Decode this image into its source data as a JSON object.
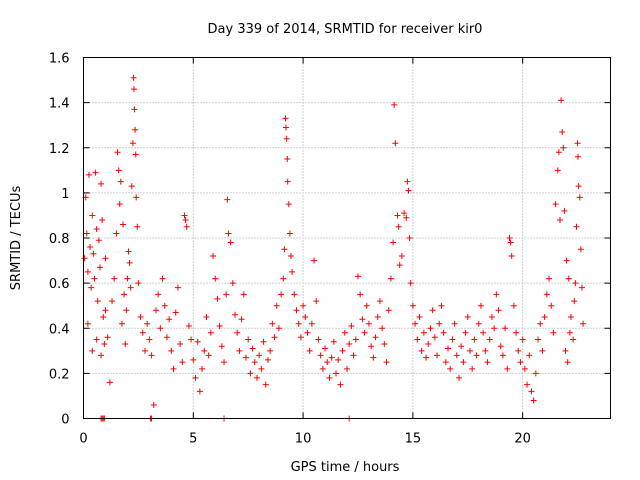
{
  "chart_data": {
    "type": "scatter",
    "title": "Day 339 of 2014, SRMTID for receiver kir0",
    "xlabel": "GPS time / hours",
    "ylabel": "SRMTID / TECUs",
    "xlim": [
      0,
      24
    ],
    "ylim": [
      0,
      1.6
    ],
    "xticks": [
      0,
      5,
      10,
      15,
      20
    ],
    "xtick_labels": [
      "0",
      "5",
      "10",
      "15",
      "20"
    ],
    "yticks": [
      0,
      0.2,
      0.4,
      0.6,
      0.8,
      1.0,
      1.2,
      1.4,
      1.6
    ],
    "ytick_labels": [
      "0",
      "0.2",
      "0.4",
      "0.6",
      "0.8",
      "1",
      "1.2",
      "1.4",
      "1.6"
    ],
    "grid": true,
    "marker": "plus",
    "color": "#ff0000",
    "series": [
      {
        "name": "SRMTID",
        "points": [
          [
            0.05,
            0.71
          ],
          [
            0.1,
            0.98
          ],
          [
            0.15,
            0.82
          ],
          [
            0.2,
            0.65
          ],
          [
            0.25,
            1.08
          ],
          [
            0.3,
            0.76
          ],
          [
            0.35,
            0.58
          ],
          [
            0.4,
            0.9
          ],
          [
            0.45,
            0.73
          ],
          [
            0.5,
            0.62
          ],
          [
            0.55,
            1.09
          ],
          [
            0.6,
            0.84
          ],
          [
            0.65,
            0.52
          ],
          [
            0.7,
            0.79
          ],
          [
            0.75,
            0.67
          ],
          [
            0.8,
            1.04
          ],
          [
            0.85,
            0.88
          ],
          [
            0.9,
            0.45
          ],
          [
            0.95,
            0.33
          ],
          [
            1.0,
            0.71
          ],
          [
            0.2,
            0.42
          ],
          [
            0.4,
            0.3
          ],
          [
            0.6,
            0.35
          ],
          [
            0.8,
            0.28
          ],
          [
            1.0,
            0.48
          ],
          [
            1.1,
            0.36
          ],
          [
            1.2,
            0.16
          ],
          [
            1.3,
            0.52
          ],
          [
            1.4,
            0.62
          ],
          [
            1.5,
            0.82
          ],
          [
            1.55,
            1.18
          ],
          [
            1.6,
            1.1
          ],
          [
            1.65,
            0.95
          ],
          [
            1.7,
            1.05
          ],
          [
            1.75,
            0.42
          ],
          [
            1.8,
            0.86
          ],
          [
            1.85,
            0.55
          ],
          [
            1.9,
            0.33
          ],
          [
            1.95,
            0.48
          ],
          [
            2.0,
            0.62
          ],
          [
            2.05,
            0.74
          ],
          [
            2.1,
            0.69
          ],
          [
            2.15,
            0.58
          ],
          [
            2.2,
            1.03
          ],
          [
            2.25,
            1.22
          ],
          [
            2.28,
            1.51
          ],
          [
            2.3,
            1.46
          ],
          [
            2.32,
            1.37
          ],
          [
            2.35,
            1.28
          ],
          [
            2.38,
            1.17
          ],
          [
            2.4,
            0.98
          ],
          [
            2.45,
            0.85
          ],
          [
            2.5,
            0.6
          ],
          [
            2.6,
            0.45
          ],
          [
            2.7,
            0.38
          ],
          [
            2.8,
            0.3
          ],
          [
            2.9,
            0.42
          ],
          [
            3.0,
            0.35
          ],
          [
            3.1,
            0.28
          ],
          [
            3.2,
            0.06
          ],
          [
            3.3,
            0.48
          ],
          [
            3.4,
            0.55
          ],
          [
            3.5,
            0.4
          ],
          [
            3.6,
            0.62
          ],
          [
            3.7,
            0.5
          ],
          [
            3.8,
            0.36
          ],
          [
            3.9,
            0.44
          ],
          [
            4.0,
            0.3
          ],
          [
            4.1,
            0.22
          ],
          [
            4.2,
            0.47
          ],
          [
            4.3,
            0.58
          ],
          [
            4.4,
            0.33
          ],
          [
            4.5,
            0.25
          ],
          [
            4.6,
            0.9
          ],
          [
            4.65,
            0.88
          ],
          [
            4.7,
            0.85
          ],
          [
            4.8,
            0.41
          ],
          [
            4.9,
            0.35
          ],
          [
            5.0,
            0.26
          ],
          [
            5.1,
            0.18
          ],
          [
            5.2,
            0.34
          ],
          [
            5.3,
            0.12
          ],
          [
            5.4,
            0.22
          ],
          [
            5.5,
            0.3
          ],
          [
            5.6,
            0.45
          ],
          [
            5.7,
            0.28
          ],
          [
            5.8,
            0.38
          ],
          [
            5.9,
            0.72
          ],
          [
            6.0,
            0.62
          ],
          [
            6.1,
            0.53
          ],
          [
            6.2,
            0.41
          ],
          [
            6.3,
            0.32
          ],
          [
            6.4,
            0.25
          ],
          [
            6.5,
            0.55
          ],
          [
            6.55,
            0.97
          ],
          [
            6.6,
            0.82
          ],
          [
            6.7,
            0.78
          ],
          [
            6.8,
            0.6
          ],
          [
            6.9,
            0.46
          ],
          [
            7.0,
            0.38
          ],
          [
            7.1,
            0.3
          ],
          [
            7.2,
            0.44
          ],
          [
            7.3,
            0.55
          ],
          [
            7.4,
            0.27
          ],
          [
            7.5,
            0.35
          ],
          [
            7.6,
            0.2
          ],
          [
            7.7,
            0.31
          ],
          [
            7.8,
            0.25
          ],
          [
            7.9,
            0.18
          ],
          [
            8.0,
            0.28
          ],
          [
            8.1,
            0.22
          ],
          [
            8.2,
            0.34
          ],
          [
            8.3,
            0.15
          ],
          [
            8.4,
            0.26
          ],
          [
            8.5,
            0.3
          ],
          [
            8.6,
            0.42
          ],
          [
            8.7,
            0.36
          ],
          [
            8.8,
            0.5
          ],
          [
            8.9,
            0.4
          ],
          [
            9.0,
            0.55
          ],
          [
            9.1,
            0.62
          ],
          [
            9.15,
            0.75
          ],
          [
            9.2,
            1.33
          ],
          [
            9.22,
            1.29
          ],
          [
            9.25,
            1.24
          ],
          [
            9.28,
            1.15
          ],
          [
            9.3,
            1.05
          ],
          [
            9.35,
            0.95
          ],
          [
            9.4,
            0.82
          ],
          [
            9.45,
            0.72
          ],
          [
            9.5,
            0.65
          ],
          [
            9.6,
            0.55
          ],
          [
            9.7,
            0.48
          ],
          [
            9.8,
            0.42
          ],
          [
            9.9,
            0.36
          ],
          [
            10.0,
            0.5
          ],
          [
            10.1,
            0.45
          ],
          [
            10.2,
            0.38
          ],
          [
            10.3,
            0.3
          ],
          [
            10.4,
            0.42
          ],
          [
            10.5,
            0.7
          ],
          [
            10.6,
            0.52
          ],
          [
            10.7,
            0.35
          ],
          [
            10.8,
            0.28
          ],
          [
            10.9,
            0.22
          ],
          [
            11.0,
            0.31
          ],
          [
            11.1,
            0.25
          ],
          [
            11.2,
            0.18
          ],
          [
            11.3,
            0.27
          ],
          [
            11.4,
            0.34
          ],
          [
            11.5,
            0.2
          ],
          [
            11.6,
            0.26
          ],
          [
            11.7,
            0.15
          ],
          [
            11.8,
            0.3
          ],
          [
            11.9,
            0.38
          ],
          [
            12.0,
            0.22
          ],
          [
            12.1,
            0.33
          ],
          [
            12.2,
            0.41
          ],
          [
            12.3,
            0.28
          ],
          [
            12.4,
            0.35
          ],
          [
            12.5,
            0.63
          ],
          [
            12.6,
            0.55
          ],
          [
            12.7,
            0.44
          ],
          [
            12.8,
            0.38
          ],
          [
            12.9,
            0.5
          ],
          [
            13.0,
            0.42
          ],
          [
            13.1,
            0.32
          ],
          [
            13.2,
            0.27
          ],
          [
            13.3,
            0.36
          ],
          [
            13.4,
            0.45
          ],
          [
            13.5,
            0.52
          ],
          [
            13.6,
            0.4
          ],
          [
            13.7,
            0.33
          ],
          [
            13.8,
            0.25
          ],
          [
            13.9,
            0.48
          ],
          [
            14.0,
            0.62
          ],
          [
            14.1,
            0.78
          ],
          [
            14.15,
            1.39
          ],
          [
            14.2,
            1.22
          ],
          [
            14.3,
            0.9
          ],
          [
            14.35,
            0.85
          ],
          [
            14.4,
            0.68
          ],
          [
            14.5,
            0.72
          ],
          [
            14.6,
            0.91
          ],
          [
            14.7,
            0.89
          ],
          [
            14.75,
            1.05
          ],
          [
            14.8,
            1.01
          ],
          [
            14.85,
            0.8
          ],
          [
            14.9,
            0.6
          ],
          [
            15.0,
            0.5
          ],
          [
            15.1,
            0.42
          ],
          [
            15.2,
            0.35
          ],
          [
            15.3,
            0.45
          ],
          [
            15.4,
            0.3
          ],
          [
            15.5,
            0.38
          ],
          [
            15.6,
            0.27
          ],
          [
            15.7,
            0.33
          ],
          [
            15.8,
            0.4
          ],
          [
            15.9,
            0.48
          ],
          [
            16.0,
            0.36
          ],
          [
            16.1,
            0.28
          ],
          [
            16.2,
            0.42
          ],
          [
            16.3,
            0.5
          ],
          [
            16.4,
            0.38
          ],
          [
            16.5,
            0.25
          ],
          [
            16.6,
            0.31
          ],
          [
            16.7,
            0.22
          ],
          [
            16.8,
            0.35
          ],
          [
            16.9,
            0.42
          ],
          [
            17.0,
            0.28
          ],
          [
            17.1,
            0.18
          ],
          [
            17.2,
            0.32
          ],
          [
            17.3,
            0.25
          ],
          [
            17.4,
            0.38
          ],
          [
            17.5,
            0.45
          ],
          [
            17.6,
            0.3
          ],
          [
            17.7,
            0.22
          ],
          [
            17.8,
            0.35
          ],
          [
            17.9,
            0.28
          ],
          [
            18.0,
            0.42
          ],
          [
            18.1,
            0.5
          ],
          [
            18.2,
            0.38
          ],
          [
            18.3,
            0.3
          ],
          [
            18.4,
            0.25
          ],
          [
            18.5,
            0.35
          ],
          [
            18.6,
            0.45
          ],
          [
            18.7,
            0.4
          ],
          [
            18.8,
            0.55
          ],
          [
            18.9,
            0.48
          ],
          [
            19.0,
            0.32
          ],
          [
            19.1,
            0.28
          ],
          [
            19.2,
            0.4
          ],
          [
            19.3,
            0.22
          ],
          [
            19.4,
            0.8
          ],
          [
            19.45,
            0.78
          ],
          [
            19.5,
            0.72
          ],
          [
            19.6,
            0.5
          ],
          [
            19.7,
            0.38
          ],
          [
            19.8,
            0.3
          ],
          [
            19.9,
            0.25
          ],
          [
            20.0,
            0.35
          ],
          [
            20.1,
            0.22
          ],
          [
            20.2,
            0.15
          ],
          [
            20.3,
            0.28
          ],
          [
            20.4,
            0.12
          ],
          [
            20.5,
            0.08
          ],
          [
            20.6,
            0.2
          ],
          [
            20.7,
            0.35
          ],
          [
            20.8,
            0.42
          ],
          [
            20.9,
            0.3
          ],
          [
            21.0,
            0.45
          ],
          [
            21.1,
            0.55
          ],
          [
            21.2,
            0.62
          ],
          [
            21.3,
            0.5
          ],
          [
            21.4,
            0.38
          ],
          [
            21.5,
            0.95
          ],
          [
            21.6,
            1.1
          ],
          [
            21.65,
            1.18
          ],
          [
            21.7,
            0.88
          ],
          [
            21.75,
            1.41
          ],
          [
            21.8,
            1.27
          ],
          [
            21.85,
            1.2
          ],
          [
            21.9,
            0.92
          ],
          [
            22.0,
            0.7
          ],
          [
            22.1,
            0.62
          ],
          [
            22.2,
            0.45
          ],
          [
            22.3,
            0.35
          ],
          [
            22.35,
            0.52
          ],
          [
            22.4,
            0.6
          ],
          [
            22.45,
            0.85
          ],
          [
            22.5,
            1.22
          ],
          [
            22.52,
            1.16
          ],
          [
            22.55,
            1.03
          ],
          [
            22.6,
            0.98
          ],
          [
            22.65,
            0.75
          ],
          [
            22.7,
            0.58
          ],
          [
            22.75,
            0.42
          ],
          [
            21.95,
            0.3
          ],
          [
            22.05,
            0.25
          ],
          [
            22.15,
            0.38
          ],
          [
            0.8,
            0.0
          ],
          [
            0.85,
            0.0
          ],
          [
            0.9,
            0.0
          ],
          [
            0.95,
            0.0
          ],
          [
            3.05,
            0.0
          ],
          [
            3.1,
            0.0
          ],
          [
            6.4,
            0.0
          ],
          [
            12.1,
            0.0
          ]
        ]
      }
    ]
  }
}
